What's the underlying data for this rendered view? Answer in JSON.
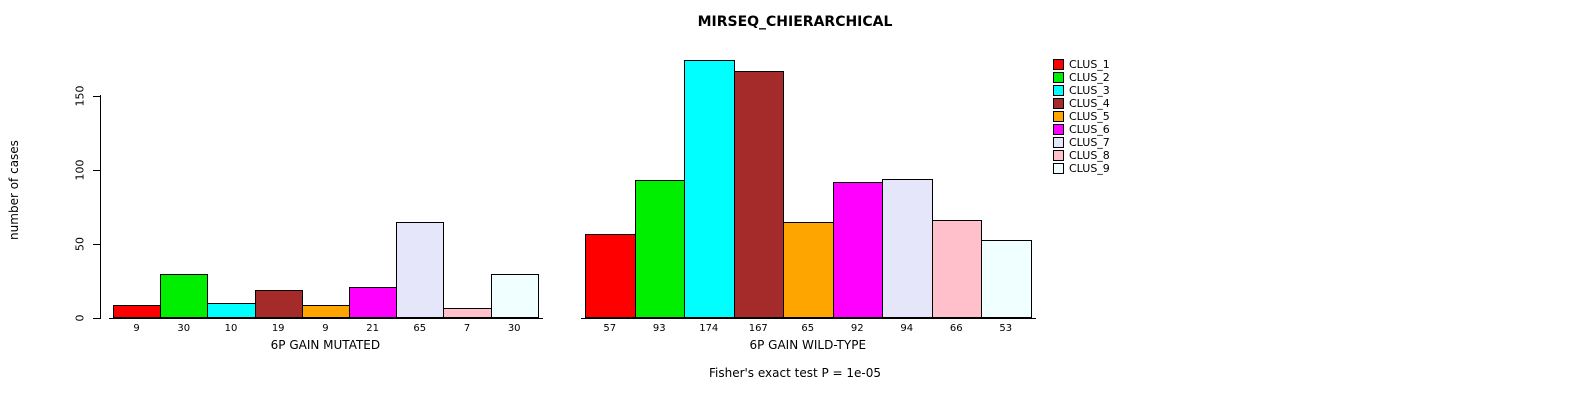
{
  "chart_data": {
    "type": "bar",
    "title": "MIRSEQ_CHIERARCHICAL",
    "ylabel": "number of cases",
    "ylim": [
      0,
      175
    ],
    "yticks": [
      0,
      50,
      100,
      150
    ],
    "grid": false,
    "legend_position": "right",
    "clusters": [
      {
        "name": "CLUS_1",
        "color": "#FF0000"
      },
      {
        "name": "CLUS_2",
        "color": "#00EE00"
      },
      {
        "name": "CLUS_3",
        "color": "#00FFFF"
      },
      {
        "name": "CLUS_4",
        "color": "#A52A2A"
      },
      {
        "name": "CLUS_5",
        "color": "#FFA500"
      },
      {
        "name": "CLUS_6",
        "color": "#FF00FF"
      },
      {
        "name": "CLUS_7",
        "color": "#E6E6FA"
      },
      {
        "name": "CLUS_8",
        "color": "#FFC0CB"
      },
      {
        "name": "CLUS_9",
        "color": "#F0FFFF"
      }
    ],
    "groups": [
      {
        "label": "6P GAIN MUTATED",
        "values": [
          9,
          30,
          10,
          19,
          9,
          21,
          65,
          7,
          30
        ]
      },
      {
        "label": "6P GAIN WILD-TYPE",
        "values": [
          57,
          93,
          174,
          167,
          65,
          92,
          94,
          66,
          53
        ]
      }
    ],
    "footnote": "Fisher's exact test P = 1e-05"
  }
}
